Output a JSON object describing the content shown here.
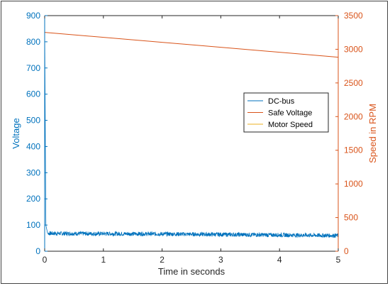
{
  "chart_data": {
    "type": "line",
    "xlabel": "Time in seconds",
    "ylabel_left": "Voltage",
    "ylabel_right": "Speed in RPM",
    "xlim": [
      0,
      5
    ],
    "ylim_left": [
      0,
      900
    ],
    "ylim_right": [
      0,
      3500
    ],
    "x_ticks": [
      "0",
      "1",
      "2",
      "3",
      "4",
      "5"
    ],
    "y_ticks_left": [
      "0",
      "100",
      "200",
      "300",
      "400",
      "500",
      "600",
      "700",
      "800",
      "900"
    ],
    "y_ticks_right": [
      "0",
      "500",
      "1000",
      "1500",
      "2000",
      "2500",
      "3000",
      "3500"
    ],
    "grid": false,
    "legend_position": "center-right",
    "series": [
      {
        "name": "DC-bus",
        "axis": "left",
        "color": "#0072bd",
        "style": "noisy band",
        "x": [
          0,
          0.02,
          0.05,
          1,
          2,
          3,
          4,
          5
        ],
        "y": [
          850,
          100,
          68,
          67,
          66,
          64,
          62,
          60
        ],
        "noise_amplitude": 8
      },
      {
        "name": "Safe Voltage",
        "axis": "left",
        "color": "#d95319",
        "x": [
          0,
          5
        ],
        "y": [
          836,
          741
        ]
      },
      {
        "name": "Motor Speed",
        "axis": "right",
        "color": "#edb120",
        "x": [],
        "y": []
      }
    ],
    "left_axis_color": "#0072bd",
    "right_axis_color": "#d95319"
  }
}
